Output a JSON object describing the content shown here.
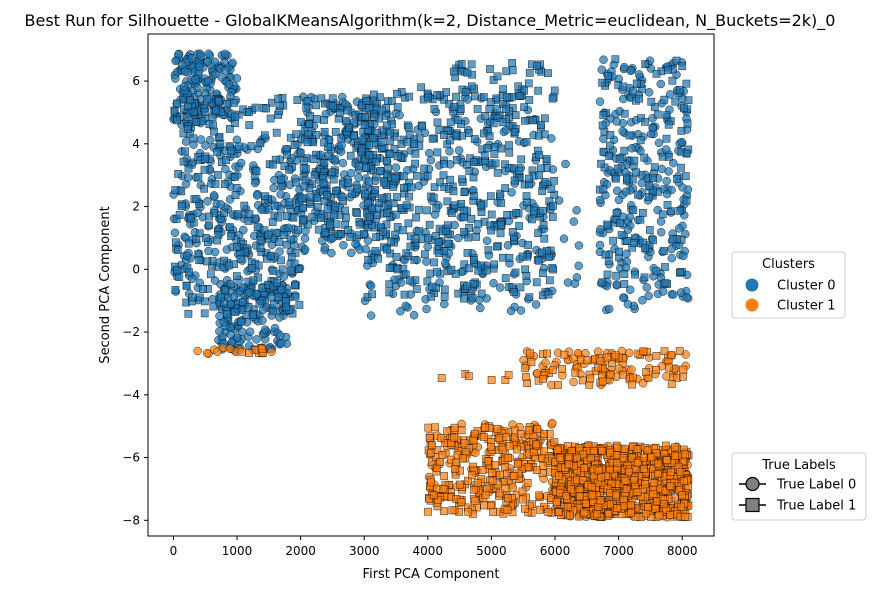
{
  "chart_data": {
    "type": "scatter",
    "title": "Best Run for Silhouette - GlobalKMeansAlgorithm(k=2, Distance_Metric=euclidean, N_Buckets=2k)_0",
    "xlabel": "First PCA Component",
    "ylabel": "Second PCA Component",
    "xlim": [
      -400,
      8500
    ],
    "ylim": [
      -8.5,
      7.5
    ],
    "xticks": [
      0,
      1000,
      2000,
      3000,
      4000,
      5000,
      6000,
      7000,
      8000
    ],
    "yticks": [
      -8,
      -6,
      -4,
      -2,
      0,
      2,
      4,
      6
    ],
    "grid": false,
    "colors": {
      "cluster_0": "#1f77b4",
      "cluster_1": "#ff7f0e",
      "marker_edge": "#000000",
      "legend_marker": "#808080"
    },
    "legend_clusters": {
      "title": "Clusters",
      "placement": "center-right",
      "entries": [
        {
          "label": "Cluster 0",
          "color": "#1f77b4",
          "marker": "circle"
        },
        {
          "label": "Cluster 1",
          "color": "#ff7f0e",
          "marker": "circle"
        }
      ]
    },
    "legend_labels": {
      "title": "True Labels",
      "placement": "bottom-right",
      "entries": [
        {
          "label": "True Label 0",
          "marker": "circle"
        },
        {
          "label": "True Label 1",
          "marker": "square"
        }
      ]
    },
    "series": [
      {
        "cluster": 0,
        "true_label": 0,
        "marker": "circle",
        "regions": [
          {
            "x": [
              0,
              1000
            ],
            "y": [
              4.6,
              6.9
            ],
            "n": 170
          },
          {
            "x": [
              0,
              2000
            ],
            "y": [
              -1.0,
              4.2
            ],
            "n": 240
          },
          {
            "x": [
              700,
              1800
            ],
            "y": [
              -2.6,
              -0.5
            ],
            "n": 150
          },
          {
            "x": [
              2000,
              3200
            ],
            "y": [
              0.5,
              5.5
            ],
            "n": 160
          },
          {
            "x": [
              3000,
              6000
            ],
            "y": [
              -1.5,
              5.5
            ],
            "n": 200
          },
          {
            "x": [
              6000,
              6400
            ],
            "y": [
              -1.0,
              3.5
            ],
            "n": 10
          },
          {
            "x": [
              6700,
              8100
            ],
            "y": [
              -1.3,
              6.7
            ],
            "n": 230
          }
        ]
      },
      {
        "cluster": 0,
        "true_label": 1,
        "marker": "square",
        "regions": [
          {
            "x": [
              0,
              2000
            ],
            "y": [
              -1.5,
              5.5
            ],
            "n": 260
          },
          {
            "x": [
              2000,
              3500
            ],
            "y": [
              1.0,
              5.5
            ],
            "n": 200
          },
          {
            "x": [
              3000,
              6000
            ],
            "y": [
              -1.0,
              5.8
            ],
            "n": 420
          },
          {
            "x": [
              4000,
              6000
            ],
            "y": [
              5.0,
              6.6
            ],
            "n": 50
          },
          {
            "x": [
              6700,
              8100
            ],
            "y": [
              -0.5,
              6.7
            ],
            "n": 130
          }
        ]
      },
      {
        "cluster": 1,
        "true_label": 0,
        "marker": "circle",
        "regions": [
          {
            "x": [
              300,
              1900
            ],
            "y": [
              -2.7,
              -2.5
            ],
            "n": 10
          },
          {
            "x": [
              5500,
              8100
            ],
            "y": [
              -3.7,
              -2.6
            ],
            "n": 70
          },
          {
            "x": [
              4000,
              6000
            ],
            "y": [
              -7.3,
              -4.9
            ],
            "n": 90
          },
          {
            "x": [
              6000,
              8100
            ],
            "y": [
              -7.9,
              -5.6
            ],
            "n": 170
          }
        ]
      },
      {
        "cluster": 1,
        "true_label": 1,
        "marker": "square",
        "regions": [
          {
            "x": [
              1000,
              1900
            ],
            "y": [
              -2.7,
              -2.5
            ],
            "n": 8
          },
          {
            "x": [
              4000,
              6000
            ],
            "y": [
              -3.6,
              -3.3
            ],
            "n": 8
          },
          {
            "x": [
              5500,
              8100
            ],
            "y": [
              -3.7,
              -2.6
            ],
            "n": 60
          },
          {
            "x": [
              4000,
              6000
            ],
            "y": [
              -7.8,
              -5.0
            ],
            "n": 260
          },
          {
            "x": [
              6000,
              8100
            ],
            "y": [
              -7.9,
              -5.6
            ],
            "n": 700
          }
        ]
      }
    ]
  }
}
